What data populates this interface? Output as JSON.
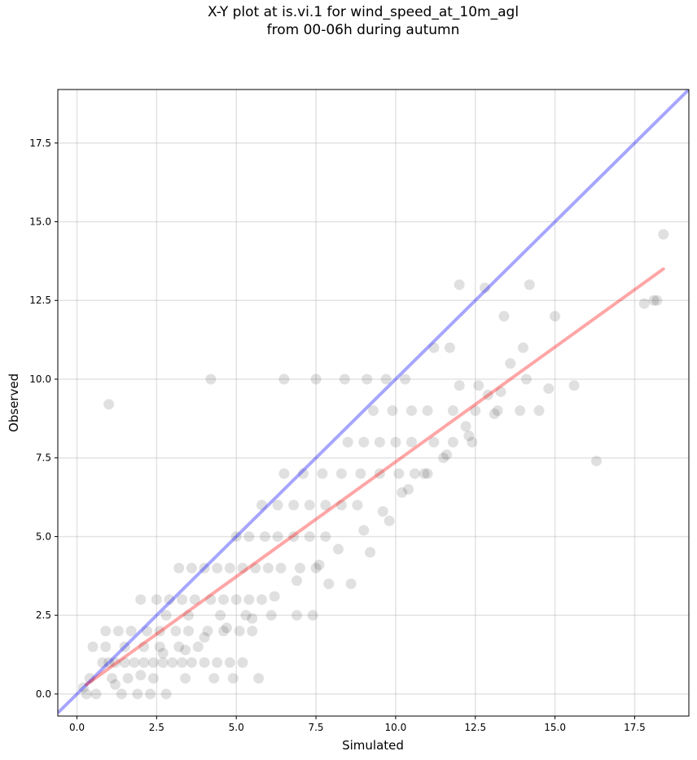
{
  "chart_data": {
    "type": "scatter",
    "title_line1": "X-Y plot at is.vi.1 for wind_speed_at_10m_agl",
    "title_line2": "from 00-06h during autumn",
    "xlabel": "Simulated",
    "ylabel": "Observed",
    "xlim": [
      -0.6,
      19.2
    ],
    "ylim": [
      -0.7,
      19.2
    ],
    "x_ticks": [
      "0.0",
      "2.5",
      "5.0",
      "7.5",
      "10.0",
      "12.5",
      "15.0",
      "17.5"
    ],
    "y_ticks": [
      "0.0",
      "2.5",
      "5.0",
      "7.5",
      "10.0",
      "12.5",
      "15.0",
      "17.5"
    ],
    "grid": true,
    "colors": {
      "points": "#000000",
      "one_to_one": "#0000ff",
      "regression": "#ff0000"
    },
    "one_to_one_line": {
      "x": [
        -0.6,
        19.2
      ],
      "y": [
        -0.6,
        19.2
      ]
    },
    "regression_line": {
      "x": [
        0.3,
        18.4
      ],
      "y": [
        0.3,
        13.5
      ]
    },
    "series": [
      {
        "x": [
          0.8,
          1.0,
          1.2,
          1.5,
          1.8,
          2.1,
          2.4,
          2.7,
          3.0,
          3.3,
          3.6,
          4.0,
          4.4,
          4.8,
          5.2,
          0.9,
          1.3,
          1.7,
          2.2,
          2.6,
          3.1,
          3.5,
          4.1,
          4.6,
          5.1,
          5.5,
          2.0,
          2.5,
          2.9,
          3.3,
          3.7,
          4.2,
          4.6,
          5.0,
          5.4,
          5.8,
          3.2,
          3.6,
          4.0,
          4.4,
          4.8,
          5.2,
          5.6,
          6.0,
          6.4,
          7.0,
          7.5,
          5.0,
          5.4,
          5.9,
          6.3,
          6.8,
          7.3,
          7.8,
          5.8,
          6.3,
          6.8,
          7.3,
          7.8,
          8.3,
          8.8,
          6.5,
          7.1,
          7.7,
          8.3,
          8.9,
          9.5,
          10.1,
          10.6,
          11.0,
          8.5,
          9.0,
          9.5,
          10.0,
          10.5,
          11.2,
          11.8,
          12.4,
          9.3,
          9.9,
          10.5,
          11.0,
          11.8,
          12.5,
          13.2,
          13.9,
          14.5,
          12.0,
          12.6,
          13.3,
          14.1,
          14.8,
          15.6,
          16.3,
          12.0,
          12.8,
          13.4,
          14.2,
          18.1,
          18.2,
          18.4,
          1.0,
          4.2,
          6.5,
          7.5,
          8.4,
          9.1,
          9.7,
          10.3,
          11.2,
          11.7,
          0.3,
          0.6,
          1.4,
          1.9,
          2.3,
          2.8,
          0.5,
          0.9,
          1.5,
          2.1,
          2.6,
          3.2,
          3.8,
          0.4,
          1.1,
          1.6,
          2.4,
          3.4,
          4.3,
          4.9,
          5.7,
          2.8,
          3.5,
          4.5,
          5.3,
          6.1,
          6.9,
          7.4,
          7.9,
          8.6,
          9.2,
          9.8,
          10.4,
          11.5,
          12.2,
          12.9,
          13.6,
          15.0,
          17.8,
          0.2,
          1.2,
          2.0,
          2.7,
          3.4,
          4.0,
          4.7,
          5.5,
          6.2,
          6.9,
          7.6,
          8.2,
          9.0,
          9.6,
          10.2,
          10.9,
          11.6,
          12.3,
          13.1,
          14.0
        ],
        "y": [
          1.0,
          1.0,
          1.0,
          1.0,
          1.0,
          1.0,
          1.0,
          1.0,
          1.0,
          1.0,
          1.0,
          1.0,
          1.0,
          1.0,
          1.0,
          2.0,
          2.0,
          2.0,
          2.0,
          2.0,
          2.0,
          2.0,
          2.0,
          2.0,
          2.0,
          2.0,
          3.0,
          3.0,
          3.0,
          3.0,
          3.0,
          3.0,
          3.0,
          3.0,
          3.0,
          3.0,
          4.0,
          4.0,
          4.0,
          4.0,
          4.0,
          4.0,
          4.0,
          4.0,
          4.0,
          4.0,
          4.0,
          5.0,
          5.0,
          5.0,
          5.0,
          5.0,
          5.0,
          5.0,
          6.0,
          6.0,
          6.0,
          6.0,
          6.0,
          6.0,
          6.0,
          7.0,
          7.0,
          7.0,
          7.0,
          7.0,
          7.0,
          7.0,
          7.0,
          7.0,
          8.0,
          8.0,
          8.0,
          8.0,
          8.0,
          8.0,
          8.0,
          8.0,
          9.0,
          9.0,
          9.0,
          9.0,
          9.0,
          9.0,
          9.0,
          9.0,
          9.0,
          9.8,
          9.8,
          9.6,
          10.0,
          9.7,
          9.8,
          7.4,
          13.0,
          12.9,
          12.0,
          13.0,
          12.5,
          12.5,
          14.6,
          9.2,
          10.0,
          10.0,
          10.0,
          10.0,
          10.0,
          10.0,
          10.0,
          11.0,
          11.0,
          0.0,
          0.0,
          0.0,
          0.0,
          0.0,
          0.0,
          1.5,
          1.5,
          1.5,
          1.5,
          1.5,
          1.5,
          1.5,
          0.5,
          0.5,
          0.5,
          0.5,
          0.5,
          0.5,
          0.5,
          0.5,
          2.5,
          2.5,
          2.5,
          2.5,
          2.5,
          2.5,
          2.5,
          3.5,
          3.5,
          4.5,
          5.5,
          6.5,
          7.5,
          8.5,
          9.5,
          10.5,
          12.0,
          12.4,
          0.2,
          0.3,
          0.6,
          1.3,
          1.4,
          1.8,
          2.1,
          2.4,
          3.1,
          3.6,
          4.1,
          4.6,
          5.2,
          5.8,
          6.4,
          7.0,
          7.6,
          8.2,
          8.9,
          11.0
        ]
      }
    ]
  }
}
